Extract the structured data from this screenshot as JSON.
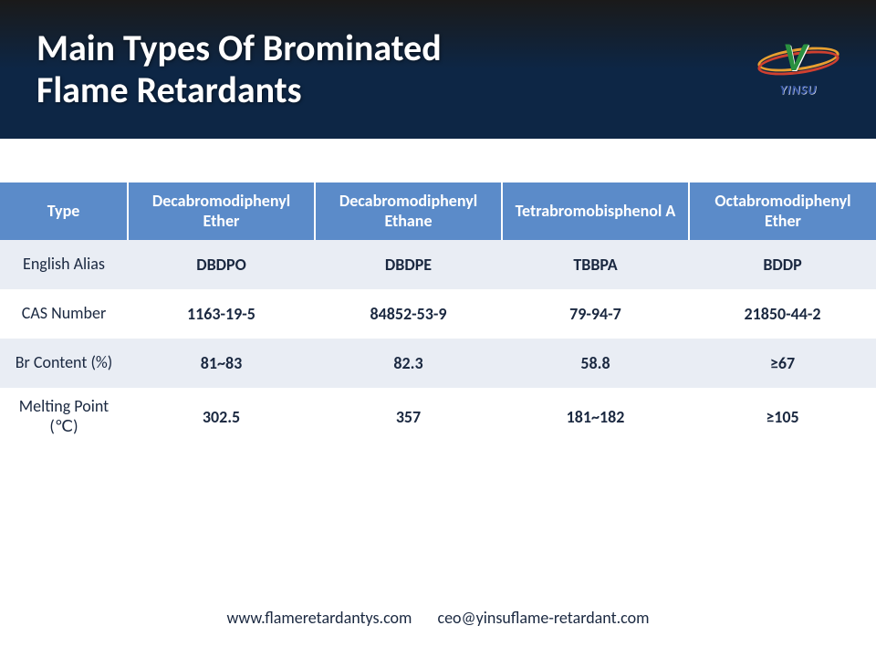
{
  "header": {
    "title_line1": "Main Types Of Brominated",
    "title_line2": "Flame Retardants",
    "logo_letter": "V",
    "logo_text": "YINSU"
  },
  "watermark": "YINSU",
  "table": {
    "header_bg": "#5b8bc9",
    "header_fg": "#ffffff",
    "row_odd_bg": "#e9edf4",
    "row_even_bg": "#ffffff",
    "cell_fg": "#1a2840",
    "columns": [
      "Type",
      "Decabromodiphenyl Ether",
      "Decabromodiphenyl Ethane",
      "Tetrabromobisphenol A",
      "Octabromodiphenyl Ether"
    ],
    "rows": [
      {
        "label": "English Alias",
        "cells": [
          "DBDPO",
          "DBDPE",
          "TBBPA",
          "BDDP"
        ]
      },
      {
        "label": "CAS Number",
        "cells": [
          "1163-19-5",
          "84852-53-9",
          "79-94-7",
          "21850-44-2"
        ]
      },
      {
        "label": "Br Content (%)",
        "cells": [
          "81~83",
          "82.3",
          "58.8",
          "≥67"
        ]
      },
      {
        "label": "Melting Point (℃)",
        "cells": [
          "302.5",
          "357",
          "181~182",
          "≥105"
        ]
      }
    ]
  },
  "footer": {
    "website": "www.flameretardantys.com",
    "email": "ceo@yinsuflame-retardant.com"
  }
}
